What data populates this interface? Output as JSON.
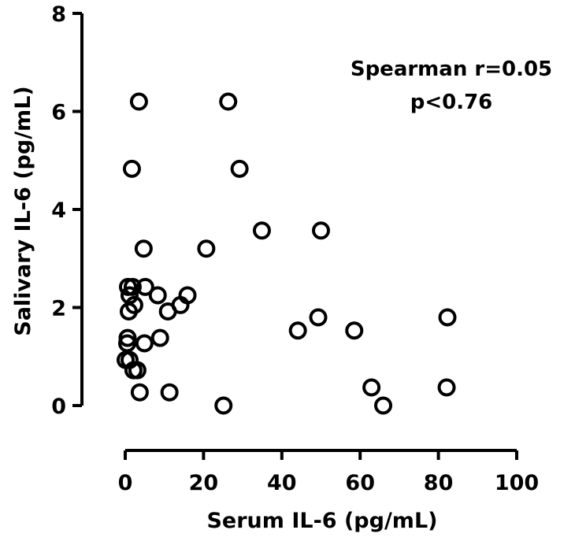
{
  "chart_data": {
    "type": "scatter",
    "title": "",
    "xlabel": "Serum IL-6 (pg/mL)",
    "ylabel": "Salivary IL-6 (pg/mL)",
    "xlim": [
      0,
      100
    ],
    "ylim": [
      0,
      8
    ],
    "xticks": [
      "0",
      "20",
      "40",
      "60",
      "80",
      "100"
    ],
    "yticks": [
      "0",
      "2",
      "4",
      "6",
      "8"
    ],
    "grid": false,
    "legend": "none",
    "marker": "open-circle",
    "annotations": [
      "Spearman r=0.05",
      "p<0.76"
    ],
    "points": [
      {
        "x": 3.5,
        "y": 6.2
      },
      {
        "x": 26.3,
        "y": 6.2
      },
      {
        "x": 1.7,
        "y": 4.83
      },
      {
        "x": 29.2,
        "y": 4.83
      },
      {
        "x": 34.9,
        "y": 3.57
      },
      {
        "x": 50.0,
        "y": 3.57
      },
      {
        "x": 4.7,
        "y": 3.2
      },
      {
        "x": 20.7,
        "y": 3.2
      },
      {
        "x": 0.7,
        "y": 2.42
      },
      {
        "x": 1.9,
        "y": 2.42
      },
      {
        "x": 5.1,
        "y": 2.42
      },
      {
        "x": 1.1,
        "y": 2.25
      },
      {
        "x": 8.3,
        "y": 2.25
      },
      {
        "x": 15.9,
        "y": 2.25
      },
      {
        "x": 2.3,
        "y": 2.05
      },
      {
        "x": 14.1,
        "y": 2.05
      },
      {
        "x": 0.9,
        "y": 1.92
      },
      {
        "x": 10.9,
        "y": 1.92
      },
      {
        "x": 49.3,
        "y": 1.8
      },
      {
        "x": 82.3,
        "y": 1.8
      },
      {
        "x": 44.1,
        "y": 1.53
      },
      {
        "x": 58.5,
        "y": 1.53
      },
      {
        "x": 0.6,
        "y": 1.38
      },
      {
        "x": 8.9,
        "y": 1.38
      },
      {
        "x": 0.5,
        "y": 1.27
      },
      {
        "x": 4.9,
        "y": 1.27
      },
      {
        "x": 0.1,
        "y": 0.93
      },
      {
        "x": 1.1,
        "y": 0.93
      },
      {
        "x": 2.1,
        "y": 0.72
      },
      {
        "x": 3.1,
        "y": 0.72
      },
      {
        "x": 3.7,
        "y": 0.27
      },
      {
        "x": 11.3,
        "y": 0.27
      },
      {
        "x": 62.9,
        "y": 0.37
      },
      {
        "x": 82.1,
        "y": 0.37
      },
      {
        "x": 25.1,
        "y": 0.0
      },
      {
        "x": 65.9,
        "y": 0.0
      }
    ]
  }
}
